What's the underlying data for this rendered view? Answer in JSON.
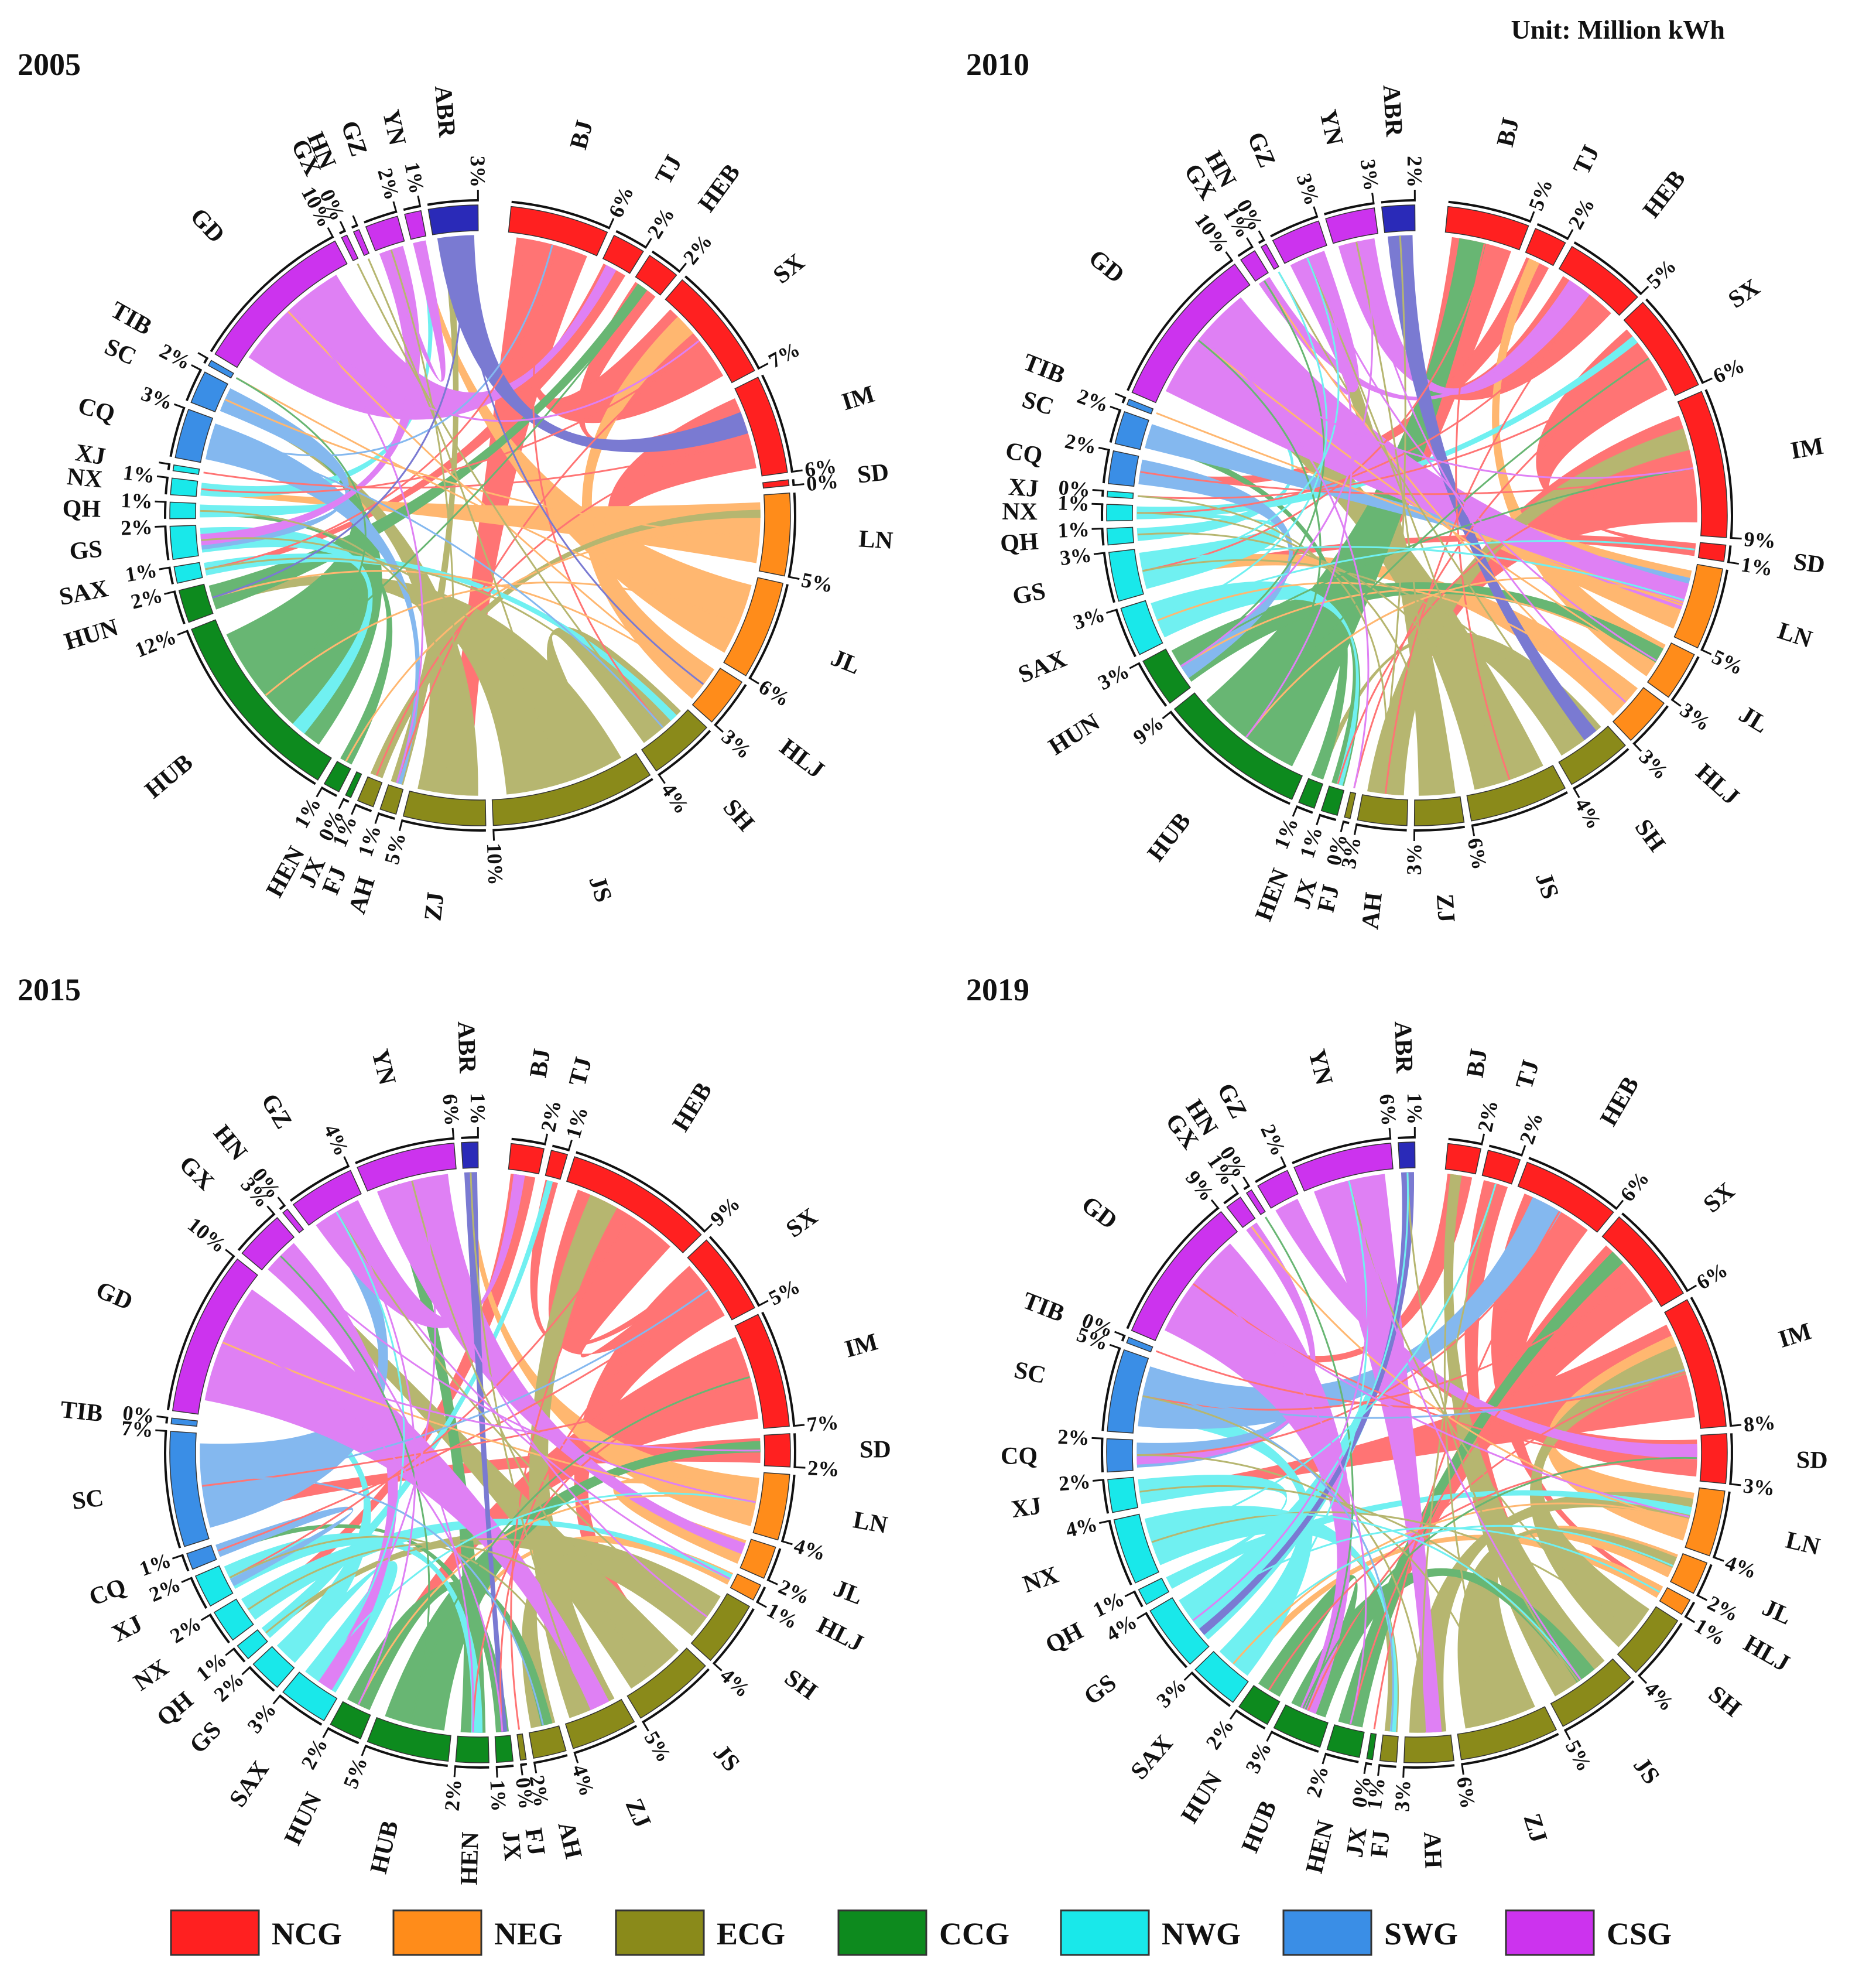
{
  "unit_label": "Unit: Million kWh",
  "legend": [
    {
      "key": "NCG",
      "label": "NCG",
      "color": "#ff2020"
    },
    {
      "key": "NEG",
      "label": "NEG",
      "color": "#ff8c1a"
    },
    {
      "key": "ECG",
      "label": "ECG",
      "color": "#8a8a1a"
    },
    {
      "key": "CCG",
      "label": "CCG",
      "color": "#0d8a1e"
    },
    {
      "key": "NWG",
      "label": "NWG",
      "color": "#19e8ea"
    },
    {
      "key": "SWG",
      "label": "SWG",
      "color": "#3a8ee6"
    },
    {
      "key": "CSG",
      "label": "CSG",
      "color": "#cc33ee"
    }
  ],
  "other_color": "#2a2ab8",
  "chart_data": [
    {
      "type": "chord",
      "title": "2005",
      "regions": [
        {
          "name": "BJ",
          "grid": "NCG",
          "share": "6%",
          "value": 6
        },
        {
          "name": "TJ",
          "grid": "NCG",
          "share": "2%",
          "value": 2
        },
        {
          "name": "HEB",
          "grid": "NCG",
          "share": "2%",
          "value": 2
        },
        {
          "name": "SX",
          "grid": "NCG",
          "share": "7%",
          "value": 7
        },
        {
          "name": "IM",
          "grid": "NCG",
          "share": "6%",
          "value": 6
        },
        {
          "name": "SD",
          "grid": "NCG",
          "share": "0%",
          "value": 0
        },
        {
          "name": "LN",
          "grid": "NEG",
          "share": "5%",
          "value": 5
        },
        {
          "name": "JL",
          "grid": "NEG",
          "share": "6%",
          "value": 6
        },
        {
          "name": "HLJ",
          "grid": "NEG",
          "share": "3%",
          "value": 3
        },
        {
          "name": "SH",
          "grid": "ECG",
          "share": "4%",
          "value": 4
        },
        {
          "name": "JS",
          "grid": "ECG",
          "share": "10%",
          "value": 10
        },
        {
          "name": "ZJ",
          "grid": "ECG",
          "share": "5%",
          "value": 5
        },
        {
          "name": "AH",
          "grid": "ECG",
          "share": "1%",
          "value": 1
        },
        {
          "name": "FJ",
          "grid": "ECG",
          "share": "1%",
          "value": 1
        },
        {
          "name": "JX",
          "grid": "CCG",
          "share": "0%",
          "value": 0
        },
        {
          "name": "HEN",
          "grid": "CCG",
          "share": "1%",
          "value": 1
        },
        {
          "name": "HUB",
          "grid": "CCG",
          "share": "12%",
          "value": 12
        },
        {
          "name": "HUN",
          "grid": "CCG",
          "share": "2%",
          "value": 2
        },
        {
          "name": "SAX",
          "grid": "NWG",
          "share": "1%",
          "value": 1
        },
        {
          "name": "GS",
          "grid": "NWG",
          "share": "2%",
          "value": 2
        },
        {
          "name": "QH",
          "grid": "NWG",
          "share": "1%",
          "value": 1
        },
        {
          "name": "NX",
          "grid": "NWG",
          "share": "1%",
          "value": 1
        },
        {
          "name": "XJ",
          "grid": "NWG",
          "share": "",
          "value": 0
        },
        {
          "name": "CQ",
          "grid": "SWG",
          "share": "3%",
          "value": 3
        },
        {
          "name": "SC",
          "grid": "SWG",
          "share": "2%",
          "value": 2
        },
        {
          "name": "TIB",
          "grid": "SWG",
          "share": "",
          "value": 0
        },
        {
          "name": "GD",
          "grid": "CSG",
          "share": "10%",
          "value": 10
        },
        {
          "name": "GX",
          "grid": "CSG",
          "share": "0%",
          "value": 0
        },
        {
          "name": "HN",
          "grid": "CSG",
          "share": "",
          "value": 0
        },
        {
          "name": "GZ",
          "grid": "CSG",
          "share": "2%",
          "value": 2
        },
        {
          "name": "YN",
          "grid": "CSG",
          "share": "1%",
          "value": 1
        },
        {
          "name": "ABR",
          "grid": "ABR",
          "share": "3%",
          "value": 3
        }
      ]
    },
    {
      "type": "chord",
      "title": "2010",
      "regions": [
        {
          "name": "BJ",
          "grid": "NCG",
          "share": "5%",
          "value": 5
        },
        {
          "name": "TJ",
          "grid": "NCG",
          "share": "2%",
          "value": 2
        },
        {
          "name": "HEB",
          "grid": "NCG",
          "share": "5%",
          "value": 5
        },
        {
          "name": "SX",
          "grid": "NCG",
          "share": "6%",
          "value": 6
        },
        {
          "name": "IM",
          "grid": "NCG",
          "share": "9%",
          "value": 9
        },
        {
          "name": "SD",
          "grid": "NCG",
          "share": "1%",
          "value": 1
        },
        {
          "name": "LN",
          "grid": "NEG",
          "share": "5%",
          "value": 5
        },
        {
          "name": "JL",
          "grid": "NEG",
          "share": "3%",
          "value": 3
        },
        {
          "name": "HLJ",
          "grid": "NEG",
          "share": "3%",
          "value": 3
        },
        {
          "name": "SH",
          "grid": "ECG",
          "share": "4%",
          "value": 4
        },
        {
          "name": "JS",
          "grid": "ECG",
          "share": "6%",
          "value": 6
        },
        {
          "name": "ZJ",
          "grid": "ECG",
          "share": "3%",
          "value": 3
        },
        {
          "name": "AH",
          "grid": "ECG",
          "share": "3%",
          "value": 3
        },
        {
          "name": "FJ",
          "grid": "ECG",
          "share": "0%",
          "value": 0
        },
        {
          "name": "JX",
          "grid": "CCG",
          "share": "1%",
          "value": 1
        },
        {
          "name": "HEN",
          "grid": "CCG",
          "share": "1%",
          "value": 1
        },
        {
          "name": "HUB",
          "grid": "CCG",
          "share": "9%",
          "value": 9
        },
        {
          "name": "HUN",
          "grid": "CCG",
          "share": "3%",
          "value": 3
        },
        {
          "name": "SAX",
          "grid": "NWG",
          "share": "3%",
          "value": 3
        },
        {
          "name": "GS",
          "grid": "NWG",
          "share": "3%",
          "value": 3
        },
        {
          "name": "QH",
          "grid": "NWG",
          "share": "1%",
          "value": 1
        },
        {
          "name": "NX",
          "grid": "NWG",
          "share": "1%",
          "value": 1
        },
        {
          "name": "XJ",
          "grid": "NWG",
          "share": "0%",
          "value": 0
        },
        {
          "name": "CQ",
          "grid": "SWG",
          "share": "2%",
          "value": 2
        },
        {
          "name": "SC",
          "grid": "SWG",
          "share": "2%",
          "value": 2
        },
        {
          "name": "TIB",
          "grid": "SWG",
          "share": "",
          "value": 0
        },
        {
          "name": "GD",
          "grid": "CSG",
          "share": "10%",
          "value": 10
        },
        {
          "name": "GX",
          "grid": "CSG",
          "share": "1%",
          "value": 1
        },
        {
          "name": "HN",
          "grid": "CSG",
          "share": "0%",
          "value": 0
        },
        {
          "name": "GZ",
          "grid": "CSG",
          "share": "3%",
          "value": 3
        },
        {
          "name": "YN",
          "grid": "CSG",
          "share": "3%",
          "value": 3
        },
        {
          "name": "ABR",
          "grid": "ABR",
          "share": "2%",
          "value": 2
        }
      ]
    },
    {
      "type": "chord",
      "title": "2015",
      "regions": [
        {
          "name": "BJ",
          "grid": "NCG",
          "share": "2%",
          "value": 2
        },
        {
          "name": "TJ",
          "grid": "NCG",
          "share": "1%",
          "value": 1
        },
        {
          "name": "HEB",
          "grid": "NCG",
          "share": "9%",
          "value": 9
        },
        {
          "name": "SX",
          "grid": "NCG",
          "share": "5%",
          "value": 5
        },
        {
          "name": "IM",
          "grid": "NCG",
          "share": "7%",
          "value": 7
        },
        {
          "name": "SD",
          "grid": "NCG",
          "share": "2%",
          "value": 2
        },
        {
          "name": "LN",
          "grid": "NEG",
          "share": "4%",
          "value": 4
        },
        {
          "name": "JL",
          "grid": "NEG",
          "share": "2%",
          "value": 2
        },
        {
          "name": "HLJ",
          "grid": "NEG",
          "share": "1%",
          "value": 1
        },
        {
          "name": "SH",
          "grid": "ECG",
          "share": "4%",
          "value": 4
        },
        {
          "name": "JS",
          "grid": "ECG",
          "share": "5%",
          "value": 5
        },
        {
          "name": "ZJ",
          "grid": "ECG",
          "share": "4%",
          "value": 4
        },
        {
          "name": "AH",
          "grid": "ECG",
          "share": "2%",
          "value": 2
        },
        {
          "name": "FJ",
          "grid": "ECG",
          "share": "0%",
          "value": 0
        },
        {
          "name": "JX",
          "grid": "CCG",
          "share": "1%",
          "value": 1
        },
        {
          "name": "HEN",
          "grid": "CCG",
          "share": "2%",
          "value": 2
        },
        {
          "name": "HUB",
          "grid": "CCG",
          "share": "5%",
          "value": 5
        },
        {
          "name": "HUN",
          "grid": "CCG",
          "share": "2%",
          "value": 2
        },
        {
          "name": "SAX",
          "grid": "NWG",
          "share": "3%",
          "value": 3
        },
        {
          "name": "GS",
          "grid": "NWG",
          "share": "2%",
          "value": 2
        },
        {
          "name": "QH",
          "grid": "NWG",
          "share": "1%",
          "value": 1
        },
        {
          "name": "NX",
          "grid": "NWG",
          "share": "2%",
          "value": 2
        },
        {
          "name": "XJ",
          "grid": "NWG",
          "share": "2%",
          "value": 2
        },
        {
          "name": "CQ",
          "grid": "SWG",
          "share": "1%",
          "value": 1
        },
        {
          "name": "SC",
          "grid": "SWG",
          "share": "7%",
          "value": 7
        },
        {
          "name": "TIB",
          "grid": "SWG",
          "share": "0%",
          "value": 0
        },
        {
          "name": "GD",
          "grid": "CSG",
          "share": "10%",
          "value": 10
        },
        {
          "name": "GX",
          "grid": "CSG",
          "share": "3%",
          "value": 3
        },
        {
          "name": "HN",
          "grid": "CSG",
          "share": "0%",
          "value": 0
        },
        {
          "name": "GZ",
          "grid": "CSG",
          "share": "4%",
          "value": 4
        },
        {
          "name": "YN",
          "grid": "CSG",
          "share": "6%",
          "value": 6
        },
        {
          "name": "ABR",
          "grid": "ABR",
          "share": "1%",
          "value": 1
        }
      ]
    },
    {
      "type": "chord",
      "title": "2019",
      "regions": [
        {
          "name": "BJ",
          "grid": "NCG",
          "share": "2%",
          "value": 2
        },
        {
          "name": "TJ",
          "grid": "NCG",
          "share": "2%",
          "value": 2
        },
        {
          "name": "HEB",
          "grid": "NCG",
          "share": "6%",
          "value": 6
        },
        {
          "name": "SX",
          "grid": "NCG",
          "share": "6%",
          "value": 6
        },
        {
          "name": "IM",
          "grid": "NCG",
          "share": "8%",
          "value": 8
        },
        {
          "name": "SD",
          "grid": "NCG",
          "share": "3%",
          "value": 3
        },
        {
          "name": "LN",
          "grid": "NEG",
          "share": "4%",
          "value": 4
        },
        {
          "name": "JL",
          "grid": "NEG",
          "share": "2%",
          "value": 2
        },
        {
          "name": "HLJ",
          "grid": "NEG",
          "share": "1%",
          "value": 1
        },
        {
          "name": "SH",
          "grid": "ECG",
          "share": "4%",
          "value": 4
        },
        {
          "name": "JS",
          "grid": "ECG",
          "share": "5%",
          "value": 5
        },
        {
          "name": "ZJ",
          "grid": "ECG",
          "share": "6%",
          "value": 6
        },
        {
          "name": "AH",
          "grid": "ECG",
          "share": "3%",
          "value": 3
        },
        {
          "name": "FJ",
          "grid": "ECG",
          "share": "1%",
          "value": 1
        },
        {
          "name": "JX",
          "grid": "CCG",
          "share": "0%",
          "value": 0
        },
        {
          "name": "HEN",
          "grid": "CCG",
          "share": "2%",
          "value": 2
        },
        {
          "name": "HUB",
          "grid": "CCG",
          "share": "3%",
          "value": 3
        },
        {
          "name": "HUN",
          "grid": "CCG",
          "share": "2%",
          "value": 2
        },
        {
          "name": "SAX",
          "grid": "NWG",
          "share": "3%",
          "value": 3
        },
        {
          "name": "GS",
          "grid": "NWG",
          "share": "4%",
          "value": 4
        },
        {
          "name": "QH",
          "grid": "NWG",
          "share": "1%",
          "value": 1
        },
        {
          "name": "NX",
          "grid": "NWG",
          "share": "4%",
          "value": 4
        },
        {
          "name": "XJ",
          "grid": "NWG",
          "share": "2%",
          "value": 2
        },
        {
          "name": "CQ",
          "grid": "SWG",
          "share": "2%",
          "value": 2
        },
        {
          "name": "SC",
          "grid": "SWG",
          "share": "5%",
          "value": 5
        },
        {
          "name": "TIB",
          "grid": "SWG",
          "share": "0%",
          "value": 0
        },
        {
          "name": "GD",
          "grid": "CSG",
          "share": "9%",
          "value": 9
        },
        {
          "name": "GX",
          "grid": "CSG",
          "share": "1%",
          "value": 1
        },
        {
          "name": "HN",
          "grid": "CSG",
          "share": "0%",
          "value": 0
        },
        {
          "name": "GZ",
          "grid": "CSG",
          "share": "2%",
          "value": 2
        },
        {
          "name": "YN",
          "grid": "CSG",
          "share": "6%",
          "value": 6
        },
        {
          "name": "ABR",
          "grid": "ABR",
          "share": "1%",
          "value": 1
        }
      ]
    }
  ]
}
